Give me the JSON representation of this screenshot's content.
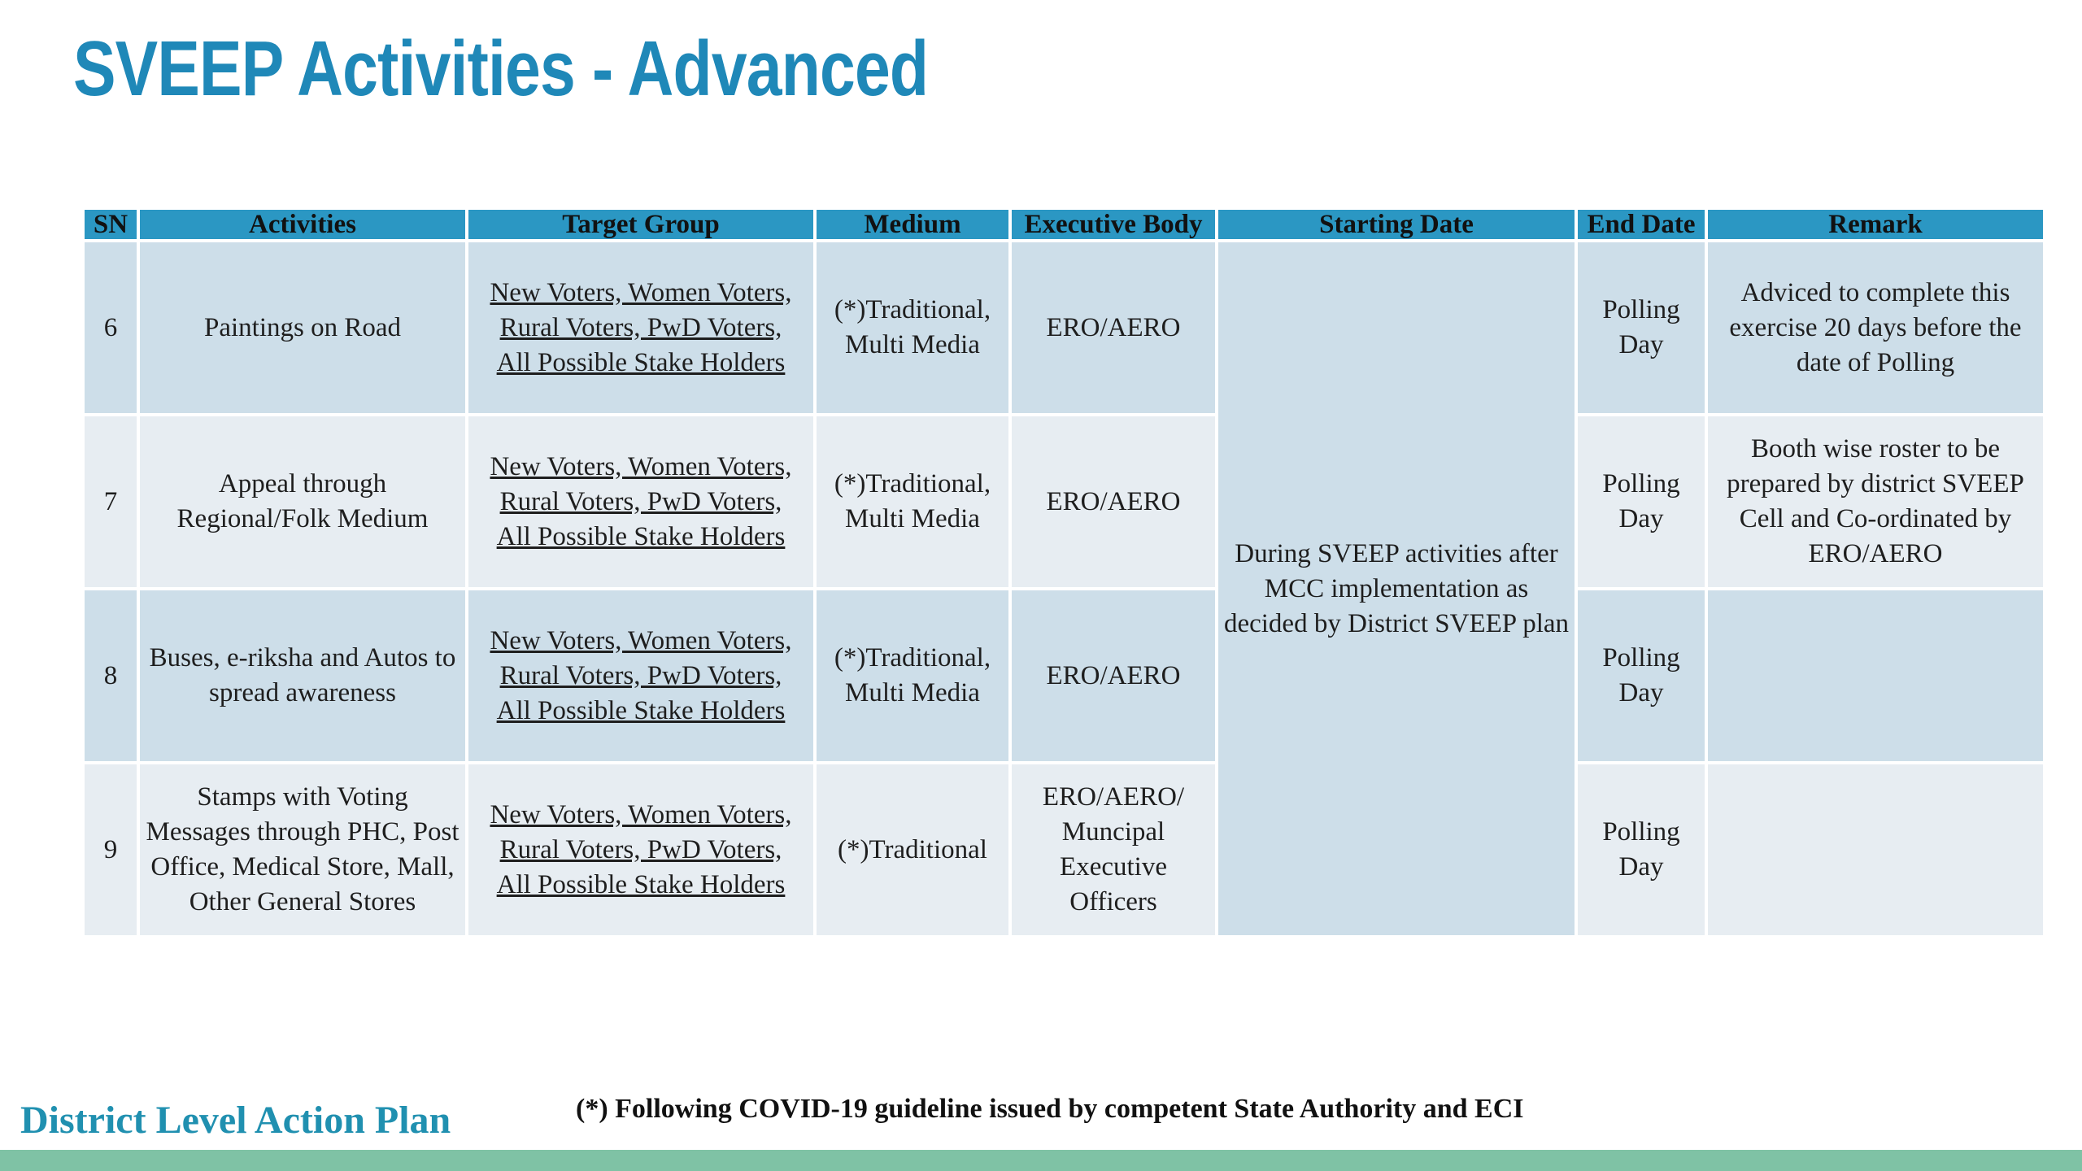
{
  "title": "SVEEP Activities - Advanced",
  "table": {
    "headers": [
      "SN",
      "Activities",
      "Target Group",
      "Medium",
      "Executive Body",
      "Starting Date",
      "End Date",
      "Remark"
    ],
    "starting_date": "During SVEEP activities after MCC implementation as decided by District SVEEP plan",
    "rows": [
      {
        "sn": "6",
        "activity": "Paintings on Road",
        "target": [
          "New Voters, Women Voters,",
          "Rural Voters, PwD Voters,",
          "All Possible Stake Holders"
        ],
        "medium": "(*)Traditional, Multi Media",
        "executive": "ERO/AERO",
        "end": "Polling Day",
        "remark": "Adviced to complete this exercise 20 days before the date of Polling"
      },
      {
        "sn": "7",
        "activity": "Appeal through Regional/Folk Medium",
        "target": [
          "New Voters, Women Voters,",
          "Rural Voters, PwD Voters,",
          "All Possible Stake Holders"
        ],
        "medium": "(*)Traditional, Multi Media",
        "executive": "ERO/AERO",
        "end": "Polling Day",
        "remark": "Booth wise roster to be prepared by district SVEEP Cell and Co-ordinated by ERO/AERO"
      },
      {
        "sn": "8",
        "activity": "Buses, e-riksha and Autos to spread awareness",
        "target": [
          "New Voters, Women Voters,",
          "Rural Voters, PwD Voters,",
          "All Possible Stake Holders"
        ],
        "medium": "(*)Traditional, Multi Media",
        "executive": "ERO/AERO",
        "end": "Polling Day",
        "remark": ""
      },
      {
        "sn": "9",
        "activity": "Stamps with Voting Messages through PHC, Post Office, Medical Store, Mall, Other General Stores",
        "target": [
          "New Voters, Women Voters,",
          "Rural Voters, PwD Voters,",
          "All Possible Stake Holders"
        ],
        "medium": "(*)Traditional",
        "executive": "ERO/AERO/ Muncipal Executive Officers",
        "end": "Polling Day",
        "remark": ""
      }
    ]
  },
  "footer": {
    "left": "District Level Action Plan",
    "note": "(*) Following COVID-19 guideline issued by competent State Authority and ECI"
  },
  "colors": {
    "title": "#1f88b8",
    "header_bg": "#2b97c3",
    "row_dark": "#cddee9",
    "row_light": "#e7edf2",
    "footer_text": "#2090b0",
    "bottom_bar": "#7fc2a5"
  }
}
